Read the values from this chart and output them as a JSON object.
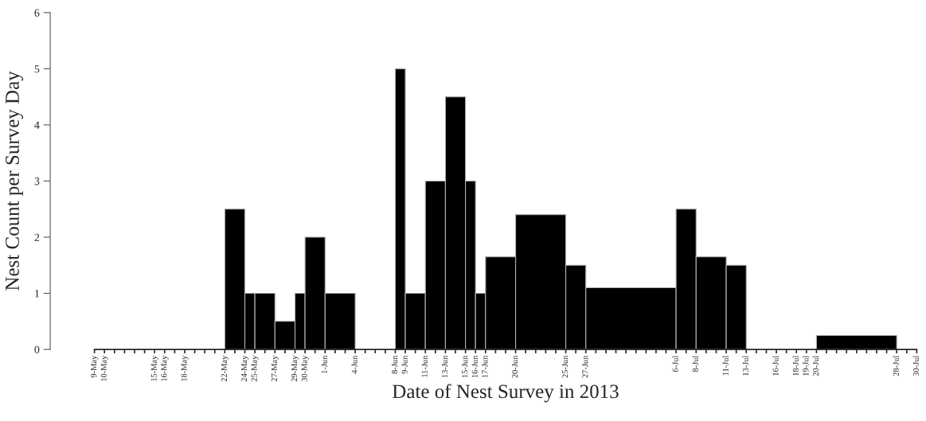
{
  "chart_data": {
    "type": "histogram",
    "xlabel": "Date of Nest Survey in 2013",
    "ylabel": "Nest Count per Survey Day",
    "bins": [
      "2013-05-22",
      "2013-05-24",
      "2013-05-25",
      "2013-05-27",
      "2013-05-29",
      "2013-05-30",
      "2013-06-01",
      "2013-06-04",
      "2013-06-08",
      "2013-06-09",
      "2013-06-11",
      "2013-06-13",
      "2013-06-15",
      "2013-06-16",
      "2013-06-17",
      "2013-06-20",
      "2013-06-25",
      "2013-06-27",
      "2013-07-06",
      "2013-07-08",
      "2013-07-11",
      "2013-07-13",
      "2013-07-20",
      "2013-07-28"
    ],
    "values": [
      2.5,
      1,
      1,
      0.5,
      1,
      2,
      1,
      0,
      5,
      1,
      3,
      4.5,
      3,
      1,
      1.65,
      2.4,
      1.5,
      1.1,
      2.5,
      1.65,
      1.5,
      0,
      0.25
    ],
    "color": "#000000",
    "xlim": [
      "2013-05-09",
      "2013-07-30"
    ],
    "xticks": [
      {
        "value": "2013-05-09",
        "label": "9-May"
      },
      {
        "value": "2013-05-10",
        "label": "10-May"
      },
      {
        "value": "2013-05-11",
        "label": null
      },
      {
        "value": "2013-05-12",
        "label": null
      },
      {
        "value": "2013-05-13",
        "label": null
      },
      {
        "value": "2013-05-14",
        "label": null
      },
      {
        "value": "2013-05-15",
        "label": "15-May"
      },
      {
        "value": "2013-05-16",
        "label": "16-May"
      },
      {
        "value": "2013-05-17",
        "label": null
      },
      {
        "value": "2013-05-18",
        "label": "18-May"
      },
      {
        "value": "2013-05-19",
        "label": null
      },
      {
        "value": "2013-05-20",
        "label": null
      },
      {
        "value": "2013-05-21",
        "label": null
      },
      {
        "value": "2013-05-22",
        "label": "22-May"
      },
      {
        "value": "2013-05-23",
        "label": null
      },
      {
        "value": "2013-05-24",
        "label": "24-May"
      },
      {
        "value": "2013-05-25",
        "label": "25-May"
      },
      {
        "value": "2013-05-26",
        "label": null
      },
      {
        "value": "2013-05-27",
        "label": "27-May"
      },
      {
        "value": "2013-05-28",
        "label": null
      },
      {
        "value": "2013-05-29",
        "label": "29-May"
      },
      {
        "value": "2013-05-30",
        "label": "30-May"
      },
      {
        "value": "2013-05-31",
        "label": null
      },
      {
        "value": "2013-06-01",
        "label": "1-Jun"
      },
      {
        "value": "2013-06-02",
        "label": null
      },
      {
        "value": "2013-06-03",
        "label": null
      },
      {
        "value": "2013-06-04",
        "label": "4-Jun"
      },
      {
        "value": "2013-06-05",
        "label": null
      },
      {
        "value": "2013-06-06",
        "label": null
      },
      {
        "value": "2013-06-07",
        "label": null
      },
      {
        "value": "2013-06-08",
        "label": "8-Jun"
      },
      {
        "value": "2013-06-09",
        "label": "9-Jun"
      },
      {
        "value": "2013-06-10",
        "label": null
      },
      {
        "value": "2013-06-11",
        "label": "11-Jun"
      },
      {
        "value": "2013-06-12",
        "label": null
      },
      {
        "value": "2013-06-13",
        "label": "13-Jun"
      },
      {
        "value": "2013-06-14",
        "label": null
      },
      {
        "value": "2013-06-15",
        "label": "15-Jun"
      },
      {
        "value": "2013-06-16",
        "label": "16-Jun"
      },
      {
        "value": "2013-06-17",
        "label": "17-Jun"
      },
      {
        "value": "2013-06-18",
        "label": null
      },
      {
        "value": "2013-06-19",
        "label": null
      },
      {
        "value": "2013-06-20",
        "label": "20-Jun"
      },
      {
        "value": "2013-06-21",
        "label": null
      },
      {
        "value": "2013-06-22",
        "label": null
      },
      {
        "value": "2013-06-23",
        "label": null
      },
      {
        "value": "2013-06-24",
        "label": null
      },
      {
        "value": "2013-06-25",
        "label": "25-Jun"
      },
      {
        "value": "2013-06-26",
        "label": null
      },
      {
        "value": "2013-06-27",
        "label": "27-Jun"
      },
      {
        "value": "2013-06-28",
        "label": null
      },
      {
        "value": "2013-06-29",
        "label": null
      },
      {
        "value": "2013-06-30",
        "label": null
      },
      {
        "value": "2013-07-01",
        "label": null
      },
      {
        "value": "2013-07-02",
        "label": null
      },
      {
        "value": "2013-07-03",
        "label": null
      },
      {
        "value": "2013-07-04",
        "label": null
      },
      {
        "value": "2013-07-05",
        "label": null
      },
      {
        "value": "2013-07-06",
        "label": "6-Jul"
      },
      {
        "value": "2013-07-07",
        "label": null
      },
      {
        "value": "2013-07-08",
        "label": "8-Jul"
      },
      {
        "value": "2013-07-09",
        "label": null
      },
      {
        "value": "2013-07-10",
        "label": null
      },
      {
        "value": "2013-07-11",
        "label": "11-Jul"
      },
      {
        "value": "2013-07-12",
        "label": null
      },
      {
        "value": "2013-07-13",
        "label": "13-Jul"
      },
      {
        "value": "2013-07-14",
        "label": null
      },
      {
        "value": "2013-07-15",
        "label": null
      },
      {
        "value": "2013-07-16",
        "label": "16-Jul"
      },
      {
        "value": "2013-07-17",
        "label": null
      },
      {
        "value": "2013-07-18",
        "label": "18-Jul"
      },
      {
        "value": "2013-07-19",
        "label": "19-Jul"
      },
      {
        "value": "2013-07-20",
        "label": "20-Jul"
      },
      {
        "value": "2013-07-21",
        "label": null
      },
      {
        "value": "2013-07-22",
        "label": null
      },
      {
        "value": "2013-07-23",
        "label": null
      },
      {
        "value": "2013-07-24",
        "label": null
      },
      {
        "value": "2013-07-25",
        "label": null
      },
      {
        "value": "2013-07-26",
        "label": null
      },
      {
        "value": "2013-07-27",
        "label": null
      },
      {
        "value": "2013-07-28",
        "label": "28-Jul"
      },
      {
        "value": "2013-07-29",
        "label": null
      },
      {
        "value": "2013-07-30",
        "label": "30-Jul"
      }
    ],
    "ylim": [
      0,
      6
    ],
    "yticks": [
      0,
      1,
      2,
      3,
      4,
      5,
      6
    ],
    "grid": false,
    "legend": false
  }
}
